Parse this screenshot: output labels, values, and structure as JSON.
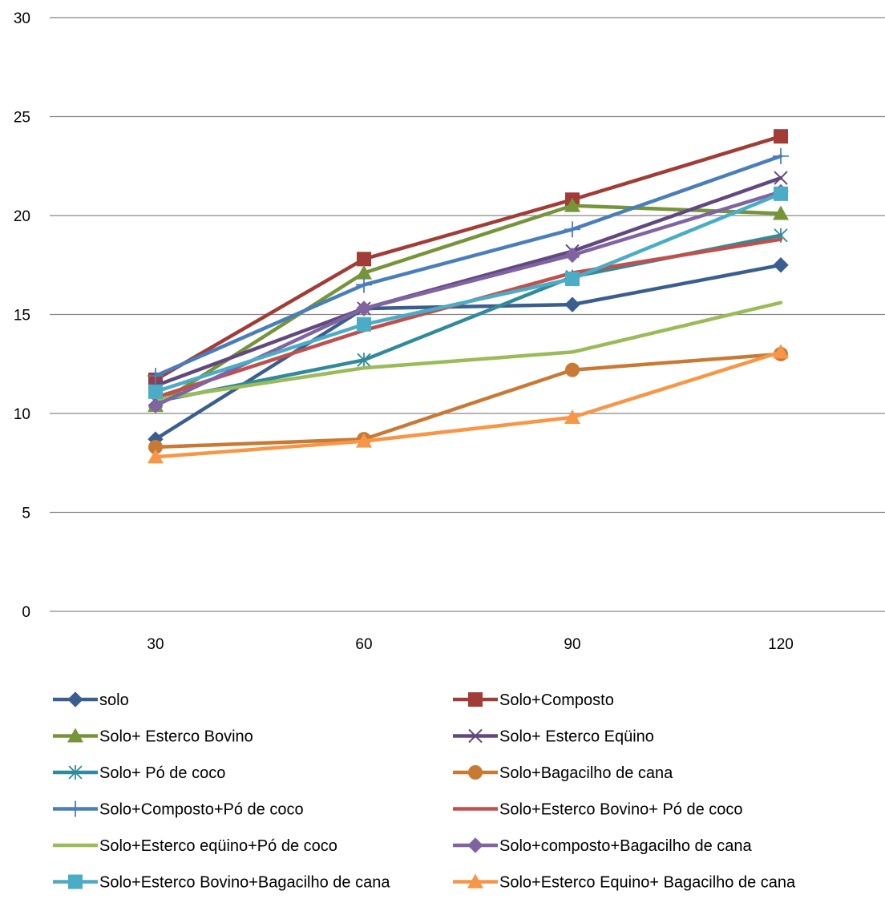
{
  "chart_data": {
    "type": "line",
    "title": "",
    "xlabel": "",
    "ylabel": "",
    "categories": [
      "30",
      "60",
      "90",
      "120"
    ],
    "ylim": [
      0,
      30
    ],
    "yticks": [
      "0",
      "5",
      "10",
      "15",
      "20",
      "25",
      "30"
    ],
    "grid": true,
    "legend_position": "bottom",
    "series": [
      {
        "name": "solo",
        "values": [
          8.7,
          15.3,
          15.5,
          17.5
        ],
        "color": "#3a5f8f",
        "marker": "diamond"
      },
      {
        "name": "Solo+Composto",
        "values": [
          11.7,
          17.8,
          20.8,
          24.0
        ],
        "color": "#a13c36",
        "marker": "square"
      },
      {
        "name": " Solo+ Esterco Bovino",
        "values": [
          10.4,
          17.1,
          20.5,
          20.1
        ],
        "color": "#76953a",
        "marker": "triangle"
      },
      {
        "name": "Solo+ Esterco Eqüino",
        "values": [
          11.4,
          15.3,
          18.2,
          21.9
        ],
        "color": "#61497f",
        "marker": "x"
      },
      {
        "name": " Solo+ Pó de coco",
        "values": [
          10.6,
          12.7,
          16.9,
          19.0
        ],
        "color": "#318a9a",
        "marker": "asterisk"
      },
      {
        "name": "Solo+Bagacilho de cana",
        "values": [
          8.3,
          8.7,
          12.2,
          13.0
        ],
        "color": "#c87a35",
        "marker": "circle"
      },
      {
        "name": "Solo+Composto+Pó de coco",
        "values": [
          11.9,
          16.5,
          19.3,
          23.0
        ],
        "color": "#4a7ebb",
        "marker": "plus"
      },
      {
        "name": "Solo+Esterco Bovino+ Pó de coco",
        "values": [
          10.8,
          14.2,
          17.1,
          18.8
        ],
        "color": "#c0504d",
        "marker": "none"
      },
      {
        "name": "Solo+Esterco eqüino+Pó de coco",
        "values": [
          10.7,
          12.3,
          13.1,
          15.6
        ],
        "color": "#9bbb59",
        "marker": "none"
      },
      {
        "name": "Solo+composto+Bagacilho de cana",
        "values": [
          10.4,
          15.3,
          18.0,
          21.2
        ],
        "color": "#8064a2",
        "marker": "diamond"
      },
      {
        "name": "Solo+Esterco Bovino+Bagacilho de cana",
        "values": [
          11.1,
          14.5,
          16.8,
          21.1
        ],
        "color": "#4bacc6",
        "marker": "square"
      },
      {
        "name": "Solo+Esterco Equino+ Bagacilho de cana",
        "values": [
          7.8,
          8.6,
          9.8,
          13.1
        ],
        "color": "#f79646",
        "marker": "triangle"
      }
    ]
  }
}
